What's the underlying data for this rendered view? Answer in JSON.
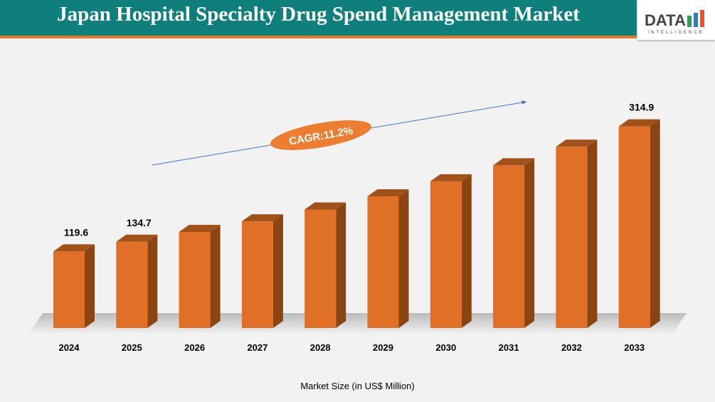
{
  "header": {
    "title": "Japan Hospital Specialty Drug Spend Management Market"
  },
  "logo": {
    "text": "DATA",
    "subtext": "INTELLIGENCE"
  },
  "chart_data": {
    "type": "bar",
    "title": "Japan Hospital Specialty Drug Spend Management Market",
    "categories": [
      "2024",
      "2025",
      "2026",
      "2027",
      "2028",
      "2029",
      "2030",
      "2031",
      "2032",
      "2033"
    ],
    "values": [
      119.6,
      134.7,
      150,
      166.5,
      185,
      205.5,
      229,
      254,
      283,
      314.9
    ],
    "data_labels": {
      "0": "119.6",
      "1": "134.7",
      "9": "314.9"
    },
    "xlabel": "Market Size (in US$ Million)",
    "ylabel": "",
    "annotation": "CAGR:11.2%",
    "bar_color": "#e07028",
    "grid": false
  }
}
